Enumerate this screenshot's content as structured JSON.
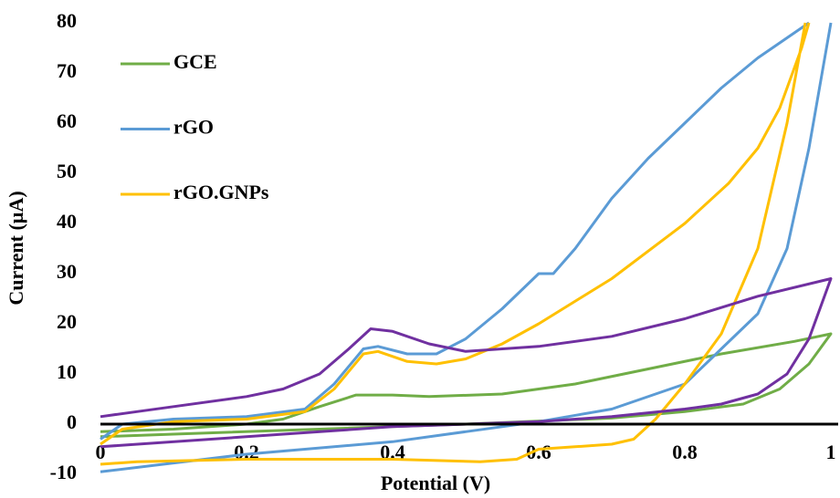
{
  "chart_data": {
    "type": "line",
    "x_label": "Potential (V)",
    "y_label": "Current (µA)",
    "xlim": [
      0,
      1
    ],
    "xticks": [
      0,
      0.2,
      0.4,
      0.6,
      0.8,
      1
    ],
    "ylim": [
      -10,
      80
    ],
    "yticks": [
      -10,
      0,
      10,
      20,
      30,
      40,
      50,
      60,
      70,
      80
    ],
    "legend": "upper left",
    "series": [
      {
        "name": "GCE",
        "color": "#70ad47",
        "x": [
          0,
          0.1,
          0.2,
          0.25,
          0.3,
          0.35,
          0.4,
          0.45,
          0.55,
          0.65,
          0.75,
          0.85,
          0.95,
          1.0,
          0.97,
          0.93,
          0.88,
          0.8,
          0.7,
          0.5,
          0.3,
          0.1,
          0
        ],
        "values": [
          -1.5,
          -1,
          0,
          1,
          3.5,
          5.8,
          5.8,
          5.5,
          6,
          8,
          11,
          14,
          16.5,
          18,
          12,
          7,
          4,
          2.5,
          1.2,
          0,
          -1,
          -2,
          -2.5
        ]
      },
      {
        "name": "rGO",
        "color": "#5b9bd5",
        "x": [
          0,
          0.03,
          0.1,
          0.2,
          0.28,
          0.32,
          0.36,
          0.38,
          0.42,
          0.46,
          0.5,
          0.55,
          0.6,
          0.62,
          0.65,
          0.7,
          0.75,
          0.8,
          0.85,
          0.9,
          0.95,
          0.97,
          null,
          1.0,
          0.97,
          0.94,
          0.9,
          0.85,
          0.8,
          0.7,
          0.6,
          0.5,
          0.4,
          0.2,
          0
        ],
        "values": [
          -3,
          0,
          1,
          1.5,
          3,
          8,
          15,
          15.5,
          14,
          14,
          17,
          23,
          30,
          30,
          35,
          45,
          53,
          60,
          67,
          73,
          78,
          80,
          null,
          80,
          55,
          35,
          22,
          15,
          8,
          3,
          0.5,
          -1.5,
          -3.5,
          -6,
          -9.5
        ]
      },
      {
        "name": "rGO.GNPs",
        "color": "#ffc000",
        "x": [
          0,
          0.03,
          0.1,
          0.2,
          0.28,
          0.32,
          0.36,
          0.38,
          0.42,
          0.46,
          0.5,
          0.55,
          0.6,
          0.7,
          0.8,
          0.86,
          0.9,
          0.93,
          0.96,
          0.97,
          null,
          0.965,
          0.94,
          0.9,
          0.85,
          0.8,
          0.76,
          0.73,
          0.7,
          0.65,
          0.6,
          0.57,
          0.52,
          0.4,
          0.2,
          0.05,
          0
        ],
        "values": [
          -4,
          -1,
          0.5,
          1,
          2.5,
          7,
          14,
          14.5,
          12.5,
          12,
          13,
          16,
          20,
          29,
          40,
          48,
          55,
          63,
          75,
          80,
          null,
          80,
          60,
          35,
          18,
          8,
          1,
          -3,
          -4,
          -4.5,
          -5,
          -7,
          -7.5,
          -7,
          -7,
          -7.5,
          -8
        ]
      },
      {
        "color": "#7030a0",
        "x": [
          0,
          0.05,
          0.1,
          0.2,
          0.25,
          0.3,
          0.34,
          0.37,
          0.4,
          0.45,
          0.5,
          0.6,
          0.7,
          0.8,
          0.9,
          1.0,
          0.99,
          0.97,
          0.94,
          0.9,
          0.85,
          0.8,
          0.7,
          0.6,
          0.4,
          0.2,
          0
        ],
        "values": [
          1.5,
          2.5,
          3.5,
          5.5,
          7,
          10,
          15,
          19,
          18.5,
          16,
          14.5,
          15.5,
          17.5,
          21,
          25.5,
          29,
          25,
          17,
          10,
          6,
          4,
          3,
          1.5,
          0.5,
          -0.5,
          -2.5,
          -4.5
        ]
      }
    ]
  }
}
